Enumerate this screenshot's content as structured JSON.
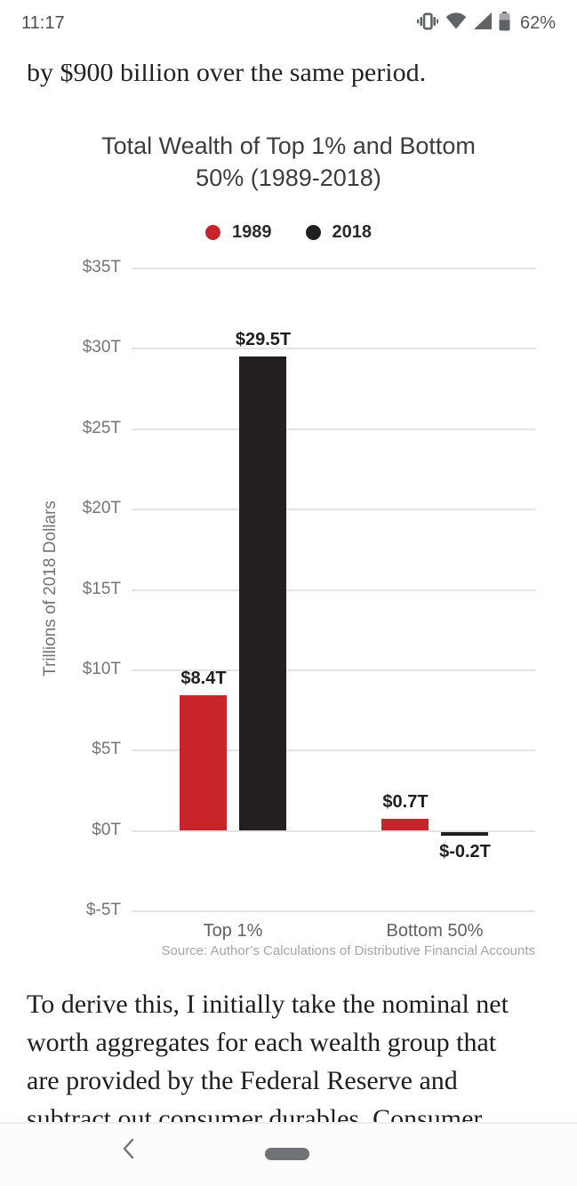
{
  "status_bar": {
    "time": "11:17",
    "battery_percent": "62%",
    "icons": [
      "vibrate-icon",
      "wifi-icon",
      "cell-signal-icon",
      "battery-icon"
    ]
  },
  "article": {
    "top_clipped_line": "by $900 billion over the same period.",
    "paragraph_lines": [
      "To derive this, I initially take the nominal net",
      "worth aggregates for each wealth group that",
      "are provided by the Federal Reserve and",
      "subtract out consumer durables. Consumer"
    ]
  },
  "chart_data": {
    "type": "bar",
    "title": "Total Wealth of Top 1% and Bottom 50% (1989-2018)",
    "categories": [
      "Top 1%",
      "Bottom 50%"
    ],
    "series": [
      {
        "name": "1989",
        "color": "#c9232c",
        "values": [
          8.4,
          0.7
        ],
        "labels": [
          "$8.4T",
          "$0.7T"
        ]
      },
      {
        "name": "2018",
        "color": "#231f20",
        "values": [
          29.5,
          -0.2
        ],
        "labels": [
          "$29.5T",
          "$-0.2T"
        ]
      }
    ],
    "ylabel": "Trillions of 2018 Dollars",
    "xlabel": "",
    "ylim": [
      -5,
      35
    ],
    "grid": true,
    "legend_position": "top",
    "yticks": [
      {
        "value": 35,
        "label": "$35T"
      },
      {
        "value": 30,
        "label": "$30T"
      },
      {
        "value": 25,
        "label": "$25T"
      },
      {
        "value": 20,
        "label": "$20T"
      },
      {
        "value": 15,
        "label": "$15T"
      },
      {
        "value": 10,
        "label": "$10T"
      },
      {
        "value": 5,
        "label": "$5T"
      },
      {
        "value": 0,
        "label": "$0T"
      },
      {
        "value": -5,
        "label": "$-5T"
      }
    ],
    "source": "Source: Author’s Calculations of Distributive Financial Accounts"
  },
  "nav_bar": {
    "icons": [
      "back-chevron-icon",
      "home-pill-indicator"
    ]
  }
}
